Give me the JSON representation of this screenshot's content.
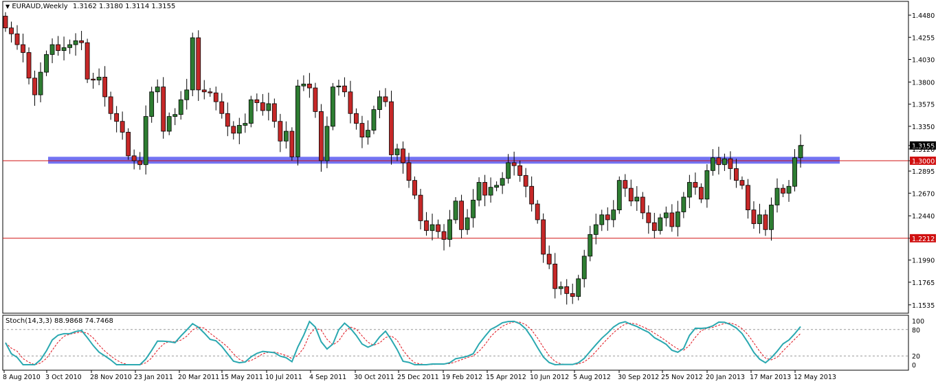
{
  "header": {
    "menu_icon": "triangle-down-icon",
    "symbol": "EURAUD,Weekly",
    "ohlc": "1.3162 1.3180 1.3114 1.3155"
  },
  "indicator": {
    "label": "Stoch(14,3,3) 88.9868 74.7468",
    "levels": [
      "100",
      "80",
      "20",
      "0"
    ]
  },
  "colors": {
    "bull": "#2e7d32",
    "bear": "#c62828",
    "zone": "#5b5bf0",
    "hline": "#d01010",
    "stoch_main": "#2aa8b0",
    "stoch_signal": "#e0101a"
  },
  "chart_data": [
    {
      "type": "candlestick",
      "title": "EURAUD,Weekly",
      "ylim": [
        1.145,
        1.462
      ],
      "y_ticks": [
        "1.4480",
        "1.4255",
        "1.4030",
        "1.3800",
        "1.3575",
        "1.3350",
        "1.3155",
        "1.3120",
        "1.3000",
        "1.2895",
        "1.2670",
        "1.2440",
        "1.2212",
        "1.1990",
        "1.1765",
        "1.1535"
      ],
      "x_ticks": [
        "8 Aug 2010",
        "3 Oct 2010",
        "28 Nov 2010",
        "23 Jan 2011",
        "20 Mar 2011",
        "15 May 2011",
        "10 Jul 2011",
        "4 Sep 2011",
        "30 Oct 2011",
        "25 Dec 2011",
        "19 Feb 2012",
        "15 Apr 2012",
        "10 Jun 2012",
        "5 Aug 2012",
        "30 Sep 2012",
        "25 Nov 2012",
        "20 Jan 2013",
        "17 Mar 2013",
        "12 May 2013"
      ],
      "current_price": "1.3155",
      "levels": [
        {
          "label": "1.3000",
          "value": 1.3
        },
        {
          "label": "1.2212",
          "value": 1.2212
        }
      ],
      "zone": {
        "from": 1.297,
        "to": 1.304
      },
      "series_close": [
        1.435,
        1.429,
        1.418,
        1.41,
        1.384,
        1.367,
        1.39,
        1.408,
        1.418,
        1.412,
        1.415,
        1.418,
        1.422,
        1.42,
        1.383,
        1.382,
        1.385,
        1.365,
        1.348,
        1.34,
        1.329,
        1.305,
        1.3,
        1.296,
        1.345,
        1.37,
        1.375,
        1.33,
        1.345,
        1.347,
        1.362,
        1.372,
        1.425,
        1.372,
        1.37,
        1.369,
        1.36,
        1.348,
        1.335,
        1.328,
        1.336,
        1.338,
        1.362,
        1.359,
        1.351,
        1.358,
        1.34,
        1.32,
        1.33,
        1.304,
        1.376,
        1.378,
        1.374,
        1.35,
        1.3,
        1.335,
        1.375,
        1.376,
        1.37,
        1.348,
        1.338,
        1.324,
        1.331,
        1.352,
        1.365,
        1.36,
        1.306,
        1.312,
        1.298,
        1.28,
        1.265,
        1.239,
        1.229,
        1.235,
        1.228,
        1.22,
        1.24,
        1.259,
        1.23,
        1.242,
        1.26,
        1.278,
        1.265,
        1.273,
        1.275,
        1.282,
        1.298,
        1.295,
        1.285,
        1.274,
        1.256,
        1.24,
        1.205,
        1.195,
        1.17,
        1.172,
        1.165,
        1.162,
        1.18,
        1.203,
        1.225,
        1.235,
        1.245,
        1.24,
        1.25,
        1.28,
        1.272,
        1.259,
        1.263,
        1.247,
        1.237,
        1.229,
        1.242,
        1.247,
        1.233,
        1.248,
        1.263,
        1.278,
        1.273,
        1.261,
        1.29,
        1.303,
        1.296,
        1.302,
        1.292,
        1.28,
        1.275,
        1.25,
        1.236,
        1.245,
        1.23,
        1.255,
        1.272,
        1.267,
        1.274,
        1.303,
        1.3155
      ],
      "stoch_main_ticks_last": "88.9868",
      "stoch_signal_last": "74.7468"
    }
  ]
}
